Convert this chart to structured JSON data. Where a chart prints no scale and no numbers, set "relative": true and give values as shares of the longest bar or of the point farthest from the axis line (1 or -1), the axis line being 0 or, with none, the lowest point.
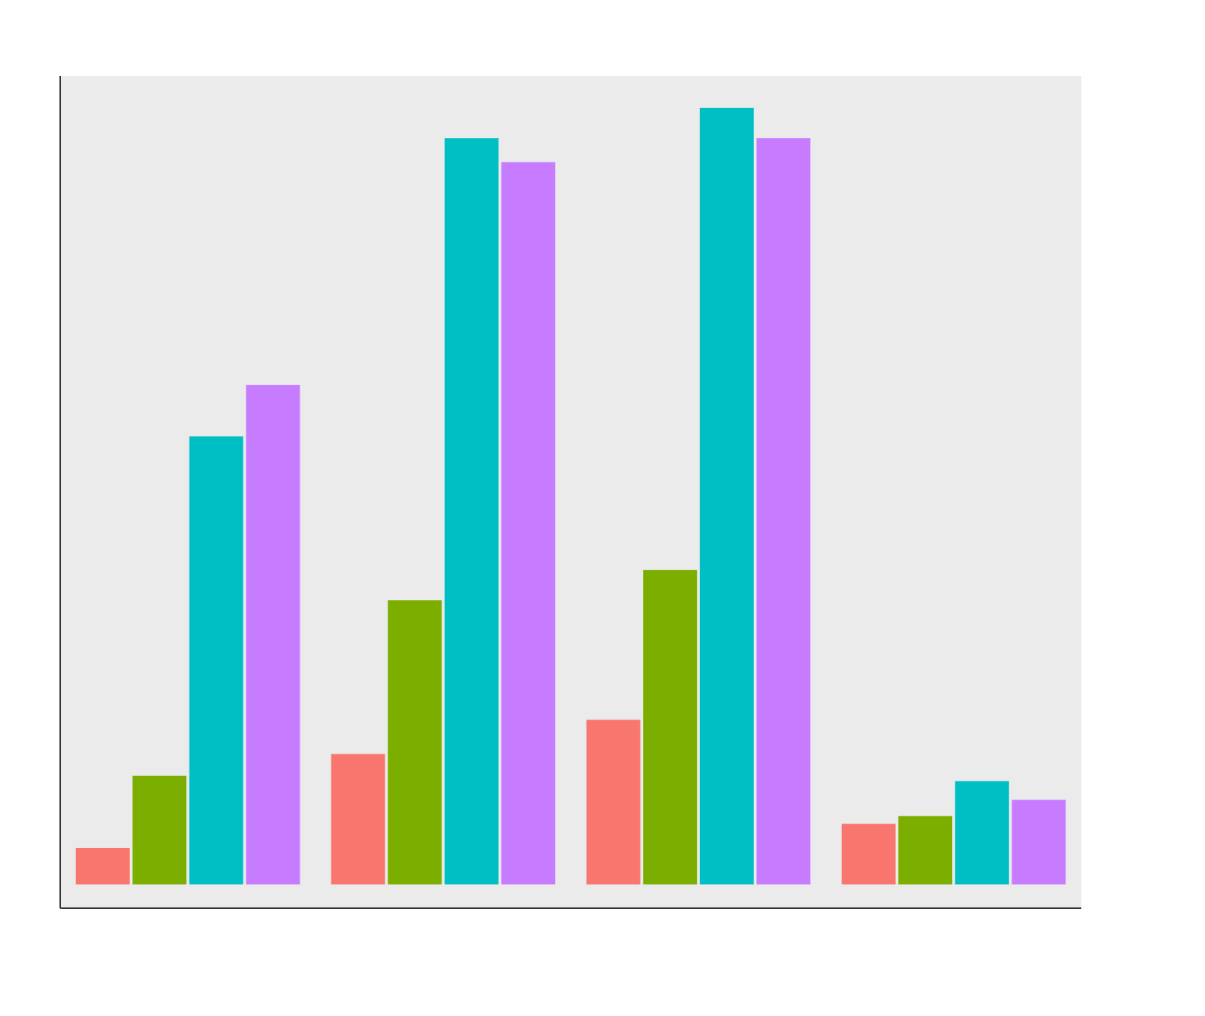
{
  "chart_data": {
    "type": "bar",
    "relative": true,
    "categories": [
      null,
      null,
      null,
      null
    ],
    "series": [
      {
        "color": "#f8766d",
        "values": [
          0.047,
          0.168,
          0.212,
          0.078
        ]
      },
      {
        "color": "#7cae00",
        "values": [
          0.14,
          0.366,
          0.405,
          0.088
        ]
      },
      {
        "color": "#00bfc4",
        "values": [
          0.577,
          0.961,
          1,
          0.133
        ]
      },
      {
        "color": "#c77cff",
        "values": [
          0.643,
          0.93,
          0.961,
          0.109
        ]
      }
    ]
  }
}
